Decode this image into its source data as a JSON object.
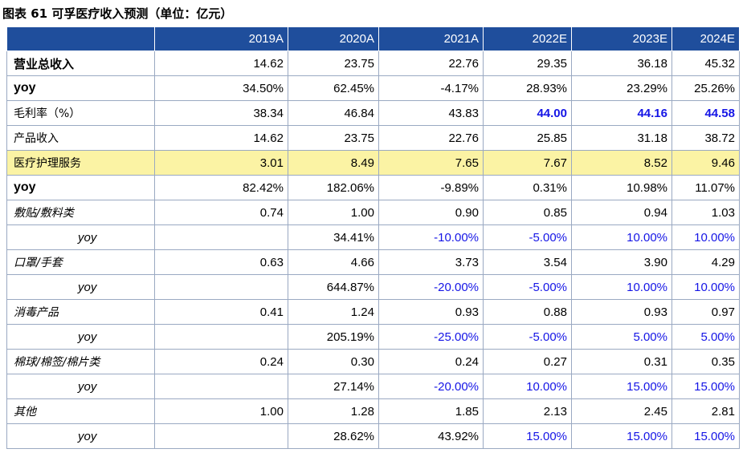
{
  "title": "图表 61 可孚医疗收入预测（单位：亿元）",
  "header": [
    "",
    "2019A",
    "2020A",
    "2021A",
    "2022E",
    "2023E",
    "2024E"
  ],
  "rows": [
    {
      "label": "营业总收入",
      "cells": [
        "14.62",
        "23.75",
        "22.76",
        "29.35",
        "36.18",
        "45.32"
      ]
    },
    {
      "label": "yoy",
      "cells": [
        "34.50%",
        "62.45%",
        "-4.17%",
        "28.93%",
        "23.29%",
        "25.26%"
      ]
    },
    {
      "label": "毛利率（%）",
      "cells": [
        "38.34",
        "46.84",
        "43.83",
        "44.00",
        "44.16",
        "44.58"
      ]
    },
    {
      "label": "产品收入",
      "cells": [
        "14.62",
        "23.75",
        "22.76",
        "25.85",
        "31.18",
        "38.72"
      ]
    },
    {
      "label": "医疗护理服务",
      "cells": [
        "3.01",
        "8.49",
        "7.65",
        "7.67",
        "8.52",
        "9.46"
      ]
    },
    {
      "label": "yoy",
      "cells": [
        "82.42%",
        "182.06%",
        "-9.89%",
        "0.31%",
        "10.98%",
        "11.07%"
      ]
    },
    {
      "label": "敷贴/敷料类",
      "cells": [
        "0.74",
        "1.00",
        "0.90",
        "0.85",
        "0.94",
        "1.03"
      ]
    },
    {
      "label": "yoy",
      "cells": [
        "",
        "34.41%",
        "-10.00%",
        "-5.00%",
        "10.00%",
        "10.00%"
      ]
    },
    {
      "label": "口罩/手套",
      "cells": [
        "0.63",
        "4.66",
        "3.73",
        "3.54",
        "3.90",
        "4.29"
      ]
    },
    {
      "label": "yoy",
      "cells": [
        "",
        "644.87%",
        "-20.00%",
        "-5.00%",
        "10.00%",
        "10.00%"
      ]
    },
    {
      "label": "消毒产品",
      "cells": [
        "0.41",
        "1.24",
        "0.93",
        "0.88",
        "0.93",
        "0.97"
      ]
    },
    {
      "label": "yoy",
      "cells": [
        "",
        "205.19%",
        "-25.00%",
        "-5.00%",
        "5.00%",
        "5.00%"
      ]
    },
    {
      "label": "棉球/棉签/棉片类",
      "cells": [
        "0.24",
        "0.30",
        "0.24",
        "0.27",
        "0.31",
        "0.35"
      ]
    },
    {
      "label": "yoy",
      "cells": [
        "",
        "27.14%",
        "-20.00%",
        "10.00%",
        "15.00%",
        "15.00%"
      ]
    },
    {
      "label": "其他",
      "cells": [
        "1.00",
        "1.28",
        "1.85",
        "2.13",
        "2.45",
        "2.81"
      ]
    },
    {
      "label": "yoy",
      "cells": [
        "",
        "28.62%",
        "43.92%",
        "15.00%",
        "15.00%",
        "15.00%"
      ]
    }
  ],
  "colors": {
    "header_bg": "#1f4e9c",
    "highlight_row": "#fbf3a4",
    "forecast_blue": "#1515e6"
  }
}
